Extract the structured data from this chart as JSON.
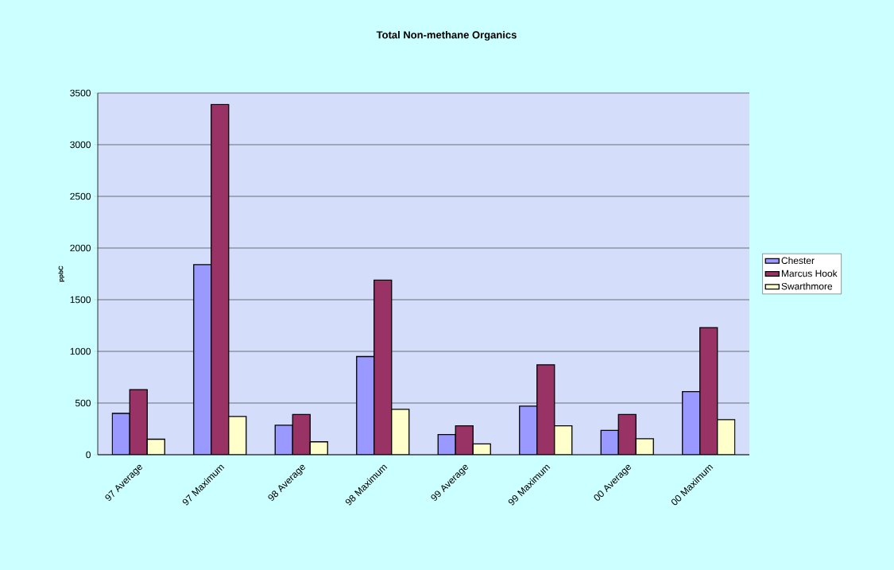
{
  "chart_data": {
    "type": "bar",
    "title": "Total Non-methane Organics",
    "ylabel": "ppbC",
    "categories": [
      "97 Average",
      "97 Maximum",
      "98 Average",
      "98 Maximum",
      "99 Average",
      "99 Maximum",
      "00 Average",
      "00 Maximum"
    ],
    "series": [
      {
        "name": "Chester",
        "color": "#9999ff",
        "values": [
          400,
          1840,
          285,
          950,
          195,
          470,
          235,
          610
        ]
      },
      {
        "name": "Marcus Hook",
        "color": "#993366",
        "values": [
          630,
          3390,
          390,
          1690,
          280,
          870,
          390,
          1230
        ]
      },
      {
        "name": "Swarthmore",
        "color": "#ffffcc",
        "values": [
          150,
          370,
          125,
          440,
          105,
          280,
          155,
          340
        ]
      }
    ],
    "ylim": [
      0,
      3500
    ],
    "yticks": [
      0,
      500,
      1000,
      1500,
      2000,
      2500,
      3000,
      3500
    ],
    "grid": "y",
    "legend": "right"
  }
}
